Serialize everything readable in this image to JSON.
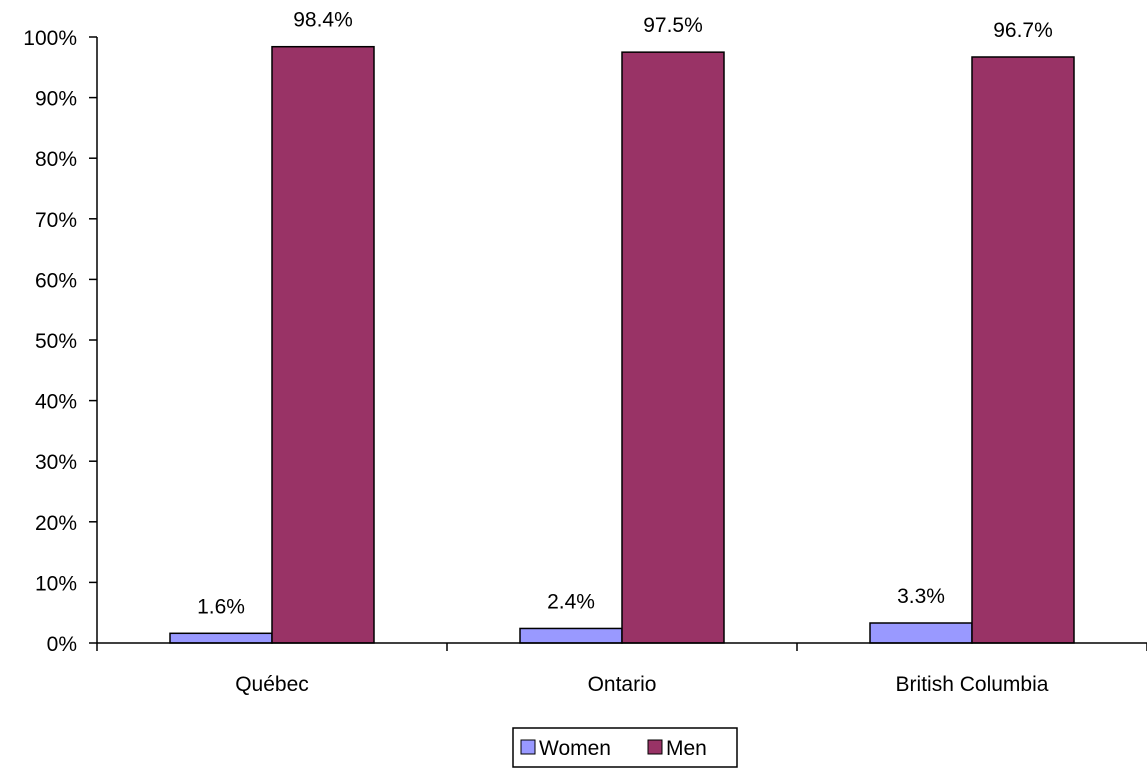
{
  "chart_data": {
    "type": "bar",
    "categories": [
      "Québec",
      "Ontario",
      "British Columbia"
    ],
    "series": [
      {
        "name": "Women",
        "values": [
          1.6,
          2.4,
          3.3
        ],
        "labels": [
          "1.6%",
          "2.4%",
          "3.3%"
        ],
        "color": "#9999FF"
      },
      {
        "name": "Men",
        "values": [
          98.4,
          97.5,
          96.7
        ],
        "labels": [
          "98.4%",
          "97.5%",
          "96.7%"
        ],
        "color": "#993366"
      }
    ],
    "ylim": [
      0,
      100
    ],
    "yticks": [
      "0%",
      "10%",
      "20%",
      "30%",
      "40%",
      "50%",
      "60%",
      "70%",
      "80%",
      "90%",
      "100%"
    ],
    "grid": false,
    "legend_position": "bottom-center"
  }
}
